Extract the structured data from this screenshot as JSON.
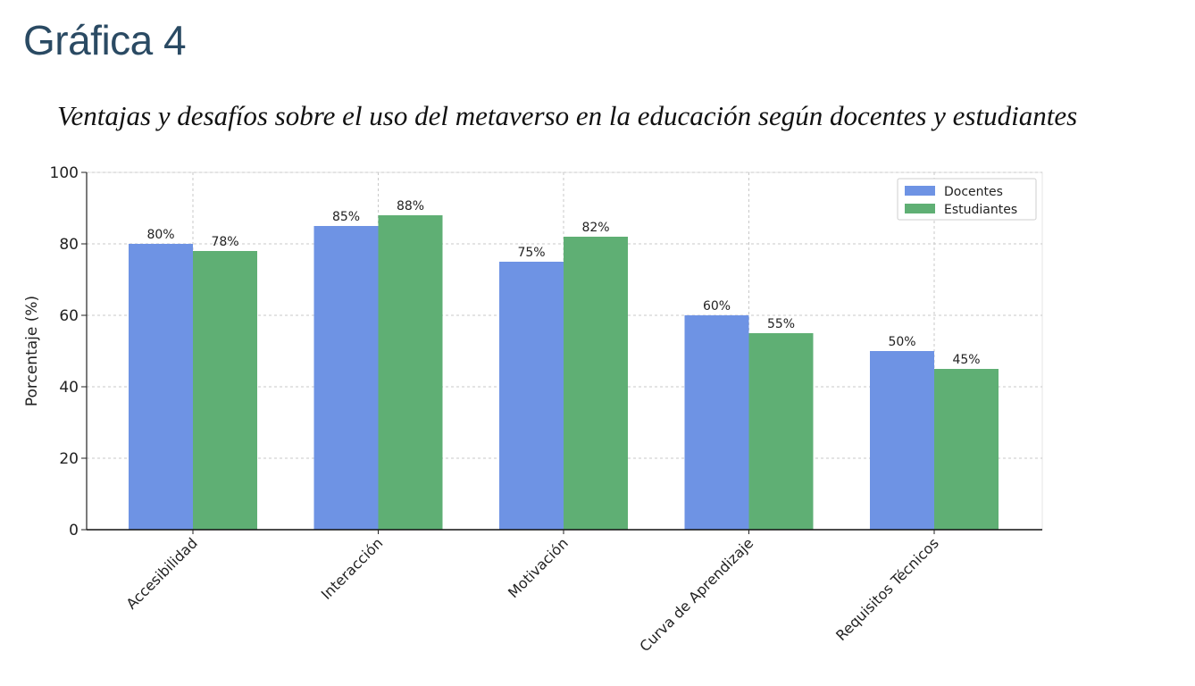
{
  "heading": "Gráfica 4",
  "chart_data": {
    "type": "bar",
    "title": "Ventajas y desafíos sobre el uso del metaverso en la educación según docentes y estudiantes",
    "xlabel": "",
    "ylabel": "Porcentaje (%)",
    "ylim": [
      0,
      100
    ],
    "yticks": [
      0,
      20,
      40,
      60,
      80,
      100
    ],
    "grid": true,
    "legend_position": "top-right",
    "categories": [
      "Accesibilidad",
      "Interacción",
      "Motivación",
      "Curva de Aprendizaje",
      "Requisitos Técnicos"
    ],
    "series": [
      {
        "name": "Docentes",
        "color": "#6e93e4",
        "values": [
          80,
          85,
          75,
          60,
          50
        ],
        "labels": [
          "80%",
          "85%",
          "75%",
          "60%",
          "50%"
        ]
      },
      {
        "name": "Estudiantes",
        "color": "#5faf74",
        "values": [
          78,
          88,
          82,
          55,
          45
        ],
        "labels": [
          "78%",
          "88%",
          "82%",
          "55%",
          "45%"
        ]
      }
    ]
  }
}
